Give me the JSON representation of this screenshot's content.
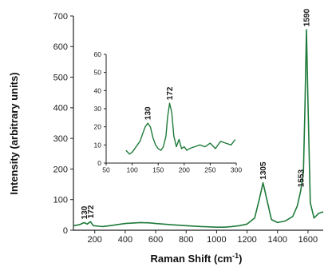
{
  "chart_data": [
    {
      "type": "line",
      "panel": "main",
      "title": "",
      "xlabel": "Raman Shift (cm",
      "xlabel_sup": "-1",
      "xlabel_close": ")",
      "ylabel": "Intensity (arbitrary units)",
      "xlim": [
        60,
        1700
      ],
      "ylim": [
        0,
        700
      ],
      "x_ticks": [
        200,
        400,
        600,
        800,
        1000,
        1200,
        1400,
        1600
      ],
      "y_ticks": [
        0,
        100,
        200,
        300,
        400,
        500,
        600,
        700
      ],
      "grid": false,
      "color": "#1e7a3a",
      "series": [
        {
          "x": [
            60,
            100,
            130,
            150,
            172,
            190,
            250,
            300,
            400,
            500,
            560,
            600,
            700,
            800,
            900,
            1000,
            1050,
            1100,
            1150,
            1200,
            1250,
            1280,
            1305,
            1330,
            1360,
            1400,
            1450,
            1500,
            1530,
            1553,
            1570,
            1580,
            1590,
            1600,
            1615,
            1640,
            1670,
            1700
          ],
          "y": [
            15,
            18,
            25,
            20,
            28,
            15,
            12,
            15,
            22,
            25,
            24,
            22,
            18,
            15,
            12,
            10,
            10,
            12,
            15,
            20,
            40,
            100,
            155,
            100,
            35,
            25,
            30,
            45,
            80,
            130,
            190,
            400,
            655,
            420,
            90,
            40,
            55,
            60
          ]
        }
      ],
      "annotations": [
        {
          "label": "130",
          "x": 130,
          "y": 25
        },
        {
          "label": "172",
          "x": 172,
          "y": 28
        },
        {
          "label": "1305",
          "x": 1305,
          "y": 155
        },
        {
          "label": "1553",
          "x": 1553,
          "y": 130
        },
        {
          "label": "1590",
          "x": 1590,
          "y": 655
        }
      ]
    },
    {
      "type": "line",
      "panel": "inset",
      "title": "",
      "xlabel": "",
      "ylabel": "",
      "xlim": [
        50,
        300
      ],
      "ylim": [
        0,
        60
      ],
      "x_ticks": [
        50,
        100,
        150,
        200,
        250,
        300
      ],
      "y_ticks": [
        0,
        10,
        20,
        30,
        40,
        50,
        60
      ],
      "grid": false,
      "color": "#1e7a3a",
      "series": [
        {
          "x": [
            88,
            95,
            100,
            105,
            110,
            115,
            120,
            125,
            130,
            135,
            140,
            145,
            150,
            155,
            160,
            165,
            168,
            172,
            176,
            180,
            185,
            190,
            195,
            200,
            205,
            210,
            220,
            230,
            240,
            250,
            260,
            270,
            280,
            290,
            298
          ],
          "y": [
            7,
            5,
            6,
            8,
            10,
            12,
            16,
            20,
            22,
            20,
            14,
            10,
            8,
            7,
            9,
            15,
            25,
            33,
            28,
            15,
            9,
            13,
            8,
            9,
            7,
            8,
            9,
            10,
            9,
            11,
            8,
            12,
            11,
            10,
            13
          ]
        }
      ],
      "annotations": [
        {
          "label": "130",
          "x": 130,
          "y": 22
        },
        {
          "label": "172",
          "x": 172,
          "y": 33
        }
      ]
    }
  ]
}
